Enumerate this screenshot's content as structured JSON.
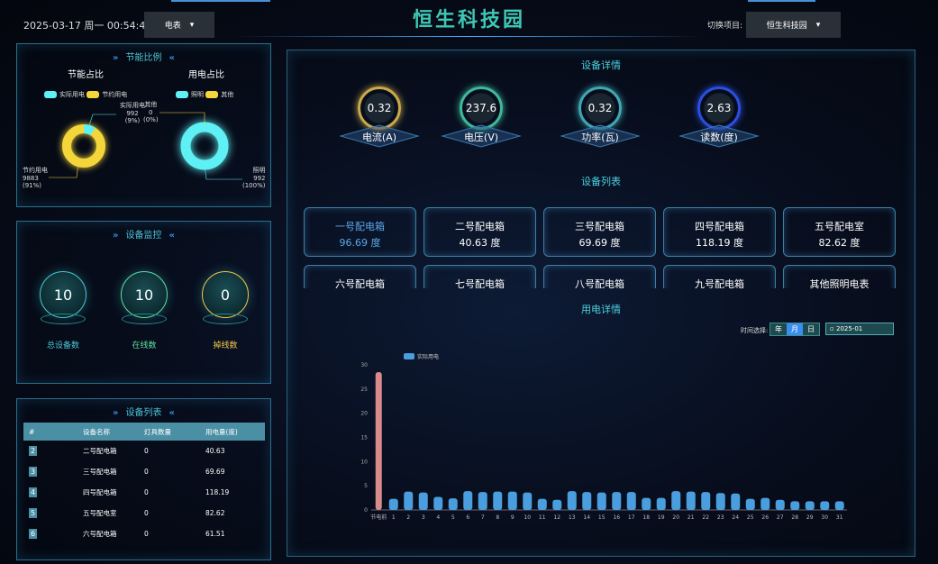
{
  "header": {
    "datetime": "2025-03-17 周一 00:54:47",
    "meter_select": "电表",
    "title": "恒生科技园",
    "switch_label": "切换项目:",
    "project_select": "恒生科技园"
  },
  "energy_ratio": {
    "title": "节能比例",
    "saving": {
      "title": "节能占比",
      "legend": [
        "实际用电",
        "节约用电"
      ],
      "actual_label": "实际用电",
      "actual_value": "992",
      "actual_pct": "(9%)",
      "saved_label": "节约用电",
      "saved_value": "9883",
      "saved_pct": "(91%)",
      "actual_fraction": 0.09
    },
    "usage": {
      "title": "用电占比",
      "legend": [
        "照明",
        "其他"
      ],
      "other_label": "其他",
      "other_value": "0",
      "other_pct": "(0%)",
      "light_label": "照明",
      "light_value": "992",
      "light_pct": "(100%)"
    },
    "colors": {
      "cyan": "#5ef0f5",
      "yellow": "#f5d63a"
    }
  },
  "monitor": {
    "title": "设备监控",
    "items": [
      {
        "value": "10",
        "label": "总设备数",
        "color": "#4cc6d8"
      },
      {
        "value": "10",
        "label": "在线数",
        "color": "#5ee0a0"
      },
      {
        "value": "0",
        "label": "掉线数",
        "color": "#f5c84a"
      }
    ]
  },
  "device_table": {
    "title": "设备列表",
    "columns": [
      "#",
      "设备名称",
      "灯具数量",
      "用电量(度)"
    ],
    "rows": [
      [
        "2",
        "二号配电箱",
        "0",
        "40.63"
      ],
      [
        "3",
        "三号配电箱",
        "0",
        "69.69"
      ],
      [
        "4",
        "四号配电箱",
        "0",
        "118.19"
      ],
      [
        "5",
        "五号配电室",
        "0",
        "82.62"
      ],
      [
        "6",
        "六号配电箱",
        "0",
        "61.51"
      ]
    ]
  },
  "detail": {
    "title": "设备详情",
    "gauges": [
      {
        "value": "0.32",
        "label": "电流(A)",
        "color": "#c9a94a"
      },
      {
        "value": "237.6",
        "label": "电压(V)",
        "color": "#3fb89a"
      },
      {
        "value": "0.32",
        "label": "功率(瓦)",
        "color": "#3fa8b0"
      },
      {
        "value": "2.63",
        "label": "读数(度)",
        "color": "#2a4fe0"
      }
    ]
  },
  "device_list": {
    "title": "设备列表",
    "cards": [
      {
        "name": "一号配电箱",
        "value": "96.69 度",
        "active": true
      },
      {
        "name": "二号配电箱",
        "value": "40.63 度"
      },
      {
        "name": "三号配电箱",
        "value": "69.69 度"
      },
      {
        "name": "四号配电箱",
        "value": "118.19 度"
      },
      {
        "name": "五号配电室",
        "value": "82.62 度"
      },
      {
        "name": "六号配电箱",
        "value": ""
      },
      {
        "name": "七号配电箱",
        "value": ""
      },
      {
        "name": "八号配电箱",
        "value": ""
      },
      {
        "name": "九号配电箱",
        "value": ""
      },
      {
        "name": "其他照明电表",
        "value": ""
      }
    ]
  },
  "usage_detail": {
    "title": "用电详情",
    "time_label": "时间选择:",
    "segments": [
      "年",
      "月",
      "日"
    ],
    "selected_segment": "月",
    "date_value": "2025-01"
  },
  "chart_data": {
    "type": "bar",
    "legend": [
      "实际用电"
    ],
    "legend_placement": "top-left",
    "ylim": [
      0,
      30
    ],
    "yticks": [
      0,
      5,
      10,
      15,
      20,
      25,
      30
    ],
    "categories": [
      "节电前",
      "1",
      "2",
      "3",
      "4",
      "5",
      "6",
      "7",
      "8",
      "9",
      "10",
      "11",
      "12",
      "13",
      "14",
      "15",
      "16",
      "17",
      "18",
      "19",
      "20",
      "21",
      "22",
      "23",
      "24",
      "25",
      "26",
      "27",
      "28",
      "29",
      "30",
      "31"
    ],
    "values": [
      28.5,
      2.3,
      3.8,
      3.6,
      2.7,
      2.4,
      3.9,
      3.7,
      3.8,
      3.8,
      3.6,
      2.3,
      2.1,
      3.9,
      3.7,
      3.6,
      3.7,
      3.7,
      2.5,
      2.5,
      3.9,
      3.8,
      3.7,
      3.5,
      3.4,
      2.3,
      2.5,
      2.1,
      1.8,
      1.8,
      1.8,
      1.8
    ],
    "colors": {
      "before": "#d98a8a",
      "actual": "#4a9ede"
    }
  }
}
